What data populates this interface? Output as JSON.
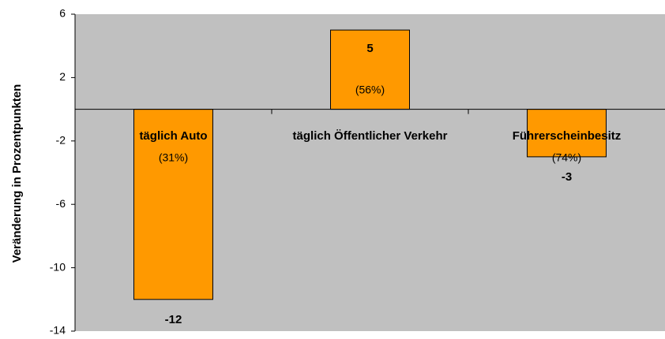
{
  "chart_data": {
    "type": "bar",
    "y_label": "Veränderung in Prozentpunkten",
    "categories": [
      "täglich Auto",
      "täglich Öffentlicher Verkehr",
      "Führerscheinbesitz"
    ],
    "values": [
      -12,
      5,
      -3
    ],
    "annotations": [
      "(31%)",
      "(56%)",
      "(74%)"
    ],
    "color": "#ff9900",
    "background": "#c0c0c0",
    "ylim": [
      -14,
      6
    ],
    "yticks": [
      -14,
      -10,
      -6,
      -2,
      2,
      6
    ]
  }
}
